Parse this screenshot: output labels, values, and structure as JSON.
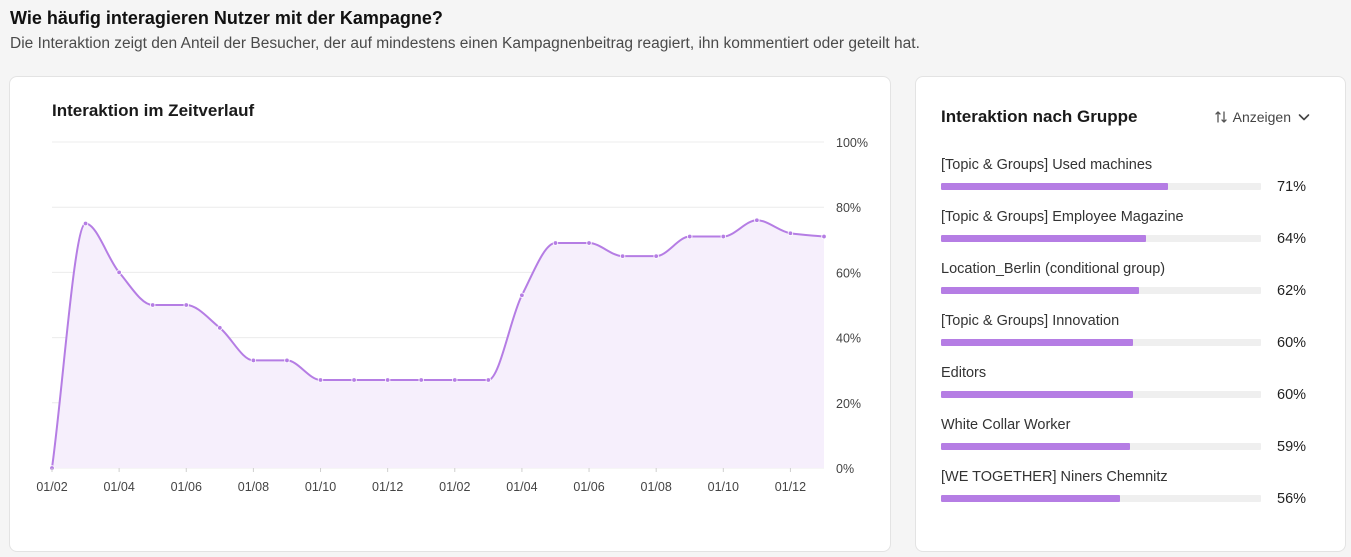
{
  "header": {
    "title": "Wie häufig interagieren Nutzer mit der Kampagne?",
    "subtitle": "Die Interaktion zeigt den Anteil der Besucher, der auf mindestens einen Kampagnenbeitrag reagiert, ihn kommentiert oder geteilt hat."
  },
  "colors": {
    "accent": "#b57de4",
    "accent_fill": "#f6effc",
    "grid": "#ececec",
    "track": "#efefef"
  },
  "chart_data": [
    {
      "type": "area",
      "title": "Interaktion im Zeitverlauf",
      "x": [
        "01/02",
        "01/03",
        "01/04",
        "01/05",
        "01/06",
        "01/07",
        "01/08",
        "01/09",
        "01/10",
        "01/11",
        "01/12",
        "01/01",
        "01/02",
        "01/03",
        "01/04",
        "01/05",
        "01/06",
        "01/07",
        "01/08",
        "01/09",
        "01/10",
        "01/11",
        "01/12",
        "01/01"
      ],
      "x_tick_labels": [
        "01/02",
        "01/04",
        "01/06",
        "01/08",
        "01/10",
        "01/12",
        "01/02",
        "01/04",
        "01/06",
        "01/08",
        "01/10",
        "01/12"
      ],
      "y_tick_labels": [
        "0%",
        "20%",
        "40%",
        "60%",
        "80%",
        "100%"
      ],
      "values": [
        0,
        75,
        60,
        50,
        50,
        43,
        33,
        33,
        27,
        27,
        27,
        27,
        27,
        27,
        53,
        69,
        69,
        65,
        65,
        71,
        71,
        76,
        72,
        71
      ],
      "ylim": [
        0,
        100
      ],
      "y_unit": "%",
      "grid": true,
      "y_axis_position": "right"
    },
    {
      "type": "bar",
      "orientation": "horizontal",
      "title": "Interaktion nach Gruppe",
      "categories": [
        "[Topic & Groups] Used machines",
        "[Topic & Groups] Employee Magazine",
        "Location_Berlin (conditional group)",
        "[Topic & Groups] Innovation",
        "Editors",
        "White Collar Worker",
        "[WE TOGETHER] Niners Chemnitz"
      ],
      "values": [
        71,
        64,
        62,
        60,
        60,
        59,
        56
      ],
      "value_labels": [
        "71%",
        "64%",
        "62%",
        "60%",
        "60%",
        "59%",
        "56%"
      ],
      "xlim": [
        0,
        100
      ]
    }
  ],
  "group_panel": {
    "toggle_label": "Anzeigen",
    "toggle_icon": "sort-icon",
    "dropdown_icon": "chevron-down-icon"
  }
}
